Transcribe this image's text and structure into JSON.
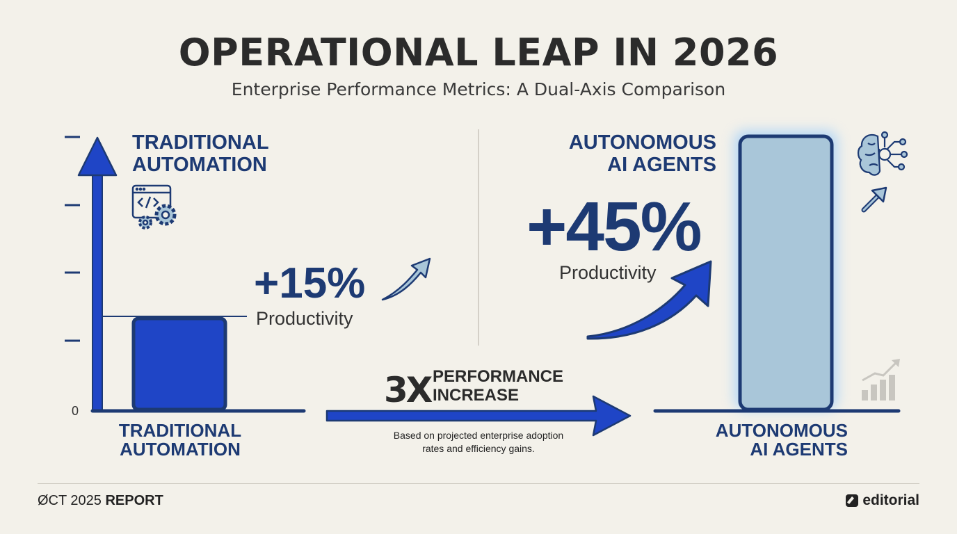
{
  "header": {
    "title": "OPERATIONAL LEAP IN 2026",
    "subtitle": "Enterprise Performance Metrics: A Dual-Axis Comparison"
  },
  "chart_data": {
    "type": "bar",
    "categories": [
      "TRADITIONAL AUTOMATION",
      "AUTONOMOUS AI AGENTS"
    ],
    "values": [
      15,
      45
    ],
    "value_labels": [
      "+15%",
      "+45%"
    ],
    "metric_label": "Productivity",
    "axis_zero_label": "0",
    "ylim": [
      0,
      45
    ],
    "grid": false,
    "series_colors": [
      "#1f45c6",
      "#a9c6d9"
    ],
    "left_panel": {
      "heading_line1": "TRADITIONAL",
      "heading_line2": "AUTOMATION",
      "icon": "code-gear-icon"
    },
    "right_panel": {
      "heading_line1": "AUTONOMOUS",
      "heading_line2": "AI AGENTS",
      "icon": "brain-circuit-icon"
    },
    "x_labels": [
      {
        "line1": "TRADITIONAL",
        "line2": "AUTOMATION"
      },
      {
        "line1": "AUTONOMOUS",
        "line2": "AI AGENTS"
      }
    ],
    "annotation": {
      "multiplier": "3X",
      "text_line1": "PERFORMANCE",
      "text_line2": "INCREASE",
      "note_line1": "Based on projected enterprise adoption",
      "note_line2": "rates and efficiency gains."
    }
  },
  "colors": {
    "navy": "#1d3a73",
    "royal_blue": "#1f45c6",
    "light_blue": "#a9c6d9",
    "background": "#f3f1ea"
  },
  "footer": {
    "date_text": "ØCT 2025",
    "report_text": "REPORT",
    "brand": "editorial"
  }
}
